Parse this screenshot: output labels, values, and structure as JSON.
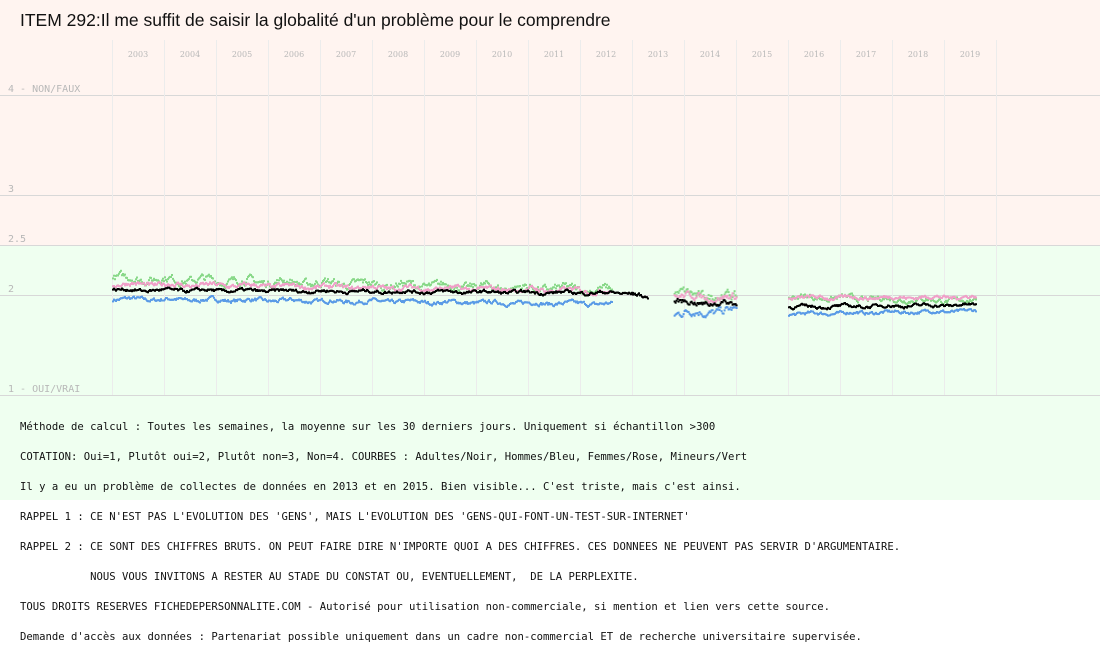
{
  "title": "ITEM 292:Il me suffit de saisir la globalité d'un problème pour le comprendre",
  "chart_data": {
    "type": "scatter",
    "years": [
      "2003",
      "2004",
      "2005",
      "2006",
      "2007",
      "2008",
      "2009",
      "2010",
      "2011",
      "2012",
      "2013",
      "2014",
      "2015",
      "2016",
      "2017",
      "2018",
      "2019"
    ],
    "y_ticks": [
      {
        "value": 4,
        "label": "4 - NON/FAUX"
      },
      {
        "value": 3,
        "label": "3"
      },
      {
        "value": 2.5,
        "label": "2.5"
      },
      {
        "value": 2,
        "label": "2"
      },
      {
        "value": 1,
        "label": "1 - OUI/VRAI"
      }
    ],
    "ylim": [
      1,
      4
    ],
    "band_split": 2.5,
    "colors": {
      "band_upper": "#fff4f0",
      "band_lower": "#effff0",
      "grid": "#d8d8d8",
      "tick_text": "#b8b8b8",
      "adultes": "#000000",
      "hommes": "#5a9be6",
      "femmes": "#f0a0c8",
      "mineurs": "#88d888"
    },
    "series": [
      {
        "key": "adultes",
        "segments": [
          {
            "x0": 2003.0,
            "x1": 2013.0,
            "y0": 2.05,
            "y1": 2.02,
            "noise": 0.012
          },
          {
            "x0": 2013.0,
            "x1": 2013.3,
            "y0": 2.02,
            "y1": 1.96,
            "noise": 0.015
          },
          {
            "x0": 2013.8,
            "x1": 2015.0,
            "y0": 1.93,
            "y1": 1.91,
            "noise": 0.02
          },
          {
            "x0": 2016.0,
            "x1": 2019.6,
            "y0": 1.88,
            "y1": 1.9,
            "noise": 0.012
          }
        ]
      },
      {
        "key": "hommes",
        "segments": [
          {
            "x0": 2003.0,
            "x1": 2012.6,
            "y0": 1.96,
            "y1": 1.91,
            "noise": 0.015
          },
          {
            "x0": 2013.8,
            "x1": 2015.0,
            "y0": 1.82,
            "y1": 1.84,
            "noise": 0.03
          },
          {
            "x0": 2016.0,
            "x1": 2019.6,
            "y0": 1.81,
            "y1": 1.84,
            "noise": 0.012
          }
        ]
      },
      {
        "key": "femmes",
        "segments": [
          {
            "x0": 2003.0,
            "x1": 2012.6,
            "y0": 2.11,
            "y1": 2.04,
            "noise": 0.018
          },
          {
            "x0": 2013.8,
            "x1": 2015.0,
            "y0": 1.99,
            "y1": 1.97,
            "noise": 0.025
          },
          {
            "x0": 2016.0,
            "x1": 2019.6,
            "y0": 1.97,
            "y1": 1.98,
            "noise": 0.014
          }
        ]
      },
      {
        "key": "mineurs",
        "segments": [
          {
            "x0": 2003.0,
            "x1": 2012.6,
            "y0": 2.17,
            "y1": 2.05,
            "noise": 0.03
          },
          {
            "x0": 2013.8,
            "x1": 2015.0,
            "y0": 2.01,
            "y1": 1.98,
            "noise": 0.035
          },
          {
            "x0": 2016.0,
            "x1": 2019.6,
            "y0": 1.98,
            "y1": 1.94,
            "noise": 0.02
          }
        ]
      }
    ]
  },
  "notes": [
    "Méthode de calcul : Toutes les semaines, la moyenne sur les 30 derniers jours. Uniquement si échantillon >300",
    "COTATION: Oui=1, Plutôt oui=2, Plutôt non=3, Non=4. COURBES : Adultes/Noir, Hommes/Bleu, Femmes/Rose, Mineurs/Vert",
    "Il y a eu un problème de collectes de données en 2013 et en 2015. Bien visible... C'est triste, mais c'est ainsi.",
    "RAPPEL 1 : CE N'EST PAS L'EVOLUTION DES 'GENS', MAIS L'EVOLUTION DES 'GENS-QUI-FONT-UN-TEST-SUR-INTERNET'",
    "RAPPEL 2 : CE SONT DES CHIFFRES BRUTS. ON PEUT FAIRE DIRE N'IMPORTE QUOI A DES CHIFFRES. CES DONNEES NE PEUVENT PAS SERVIR D'ARGUMENTAIRE.",
    "           NOUS VOUS INVITONS A RESTER AU STADE DU CONSTAT OU, EVENTUELLEMENT,  DE LA PERPLEXITE.",
    "TOUS DROITS RESERVES FICHEDEPERSONNALITE.COM - Autorisé pour utilisation non-commerciale, si mention et lien vers cette source.",
    "Demande d'accès aux données : Partenariat possible uniquement dans un cadre non-commercial ET de recherche universitaire supervisée."
  ]
}
